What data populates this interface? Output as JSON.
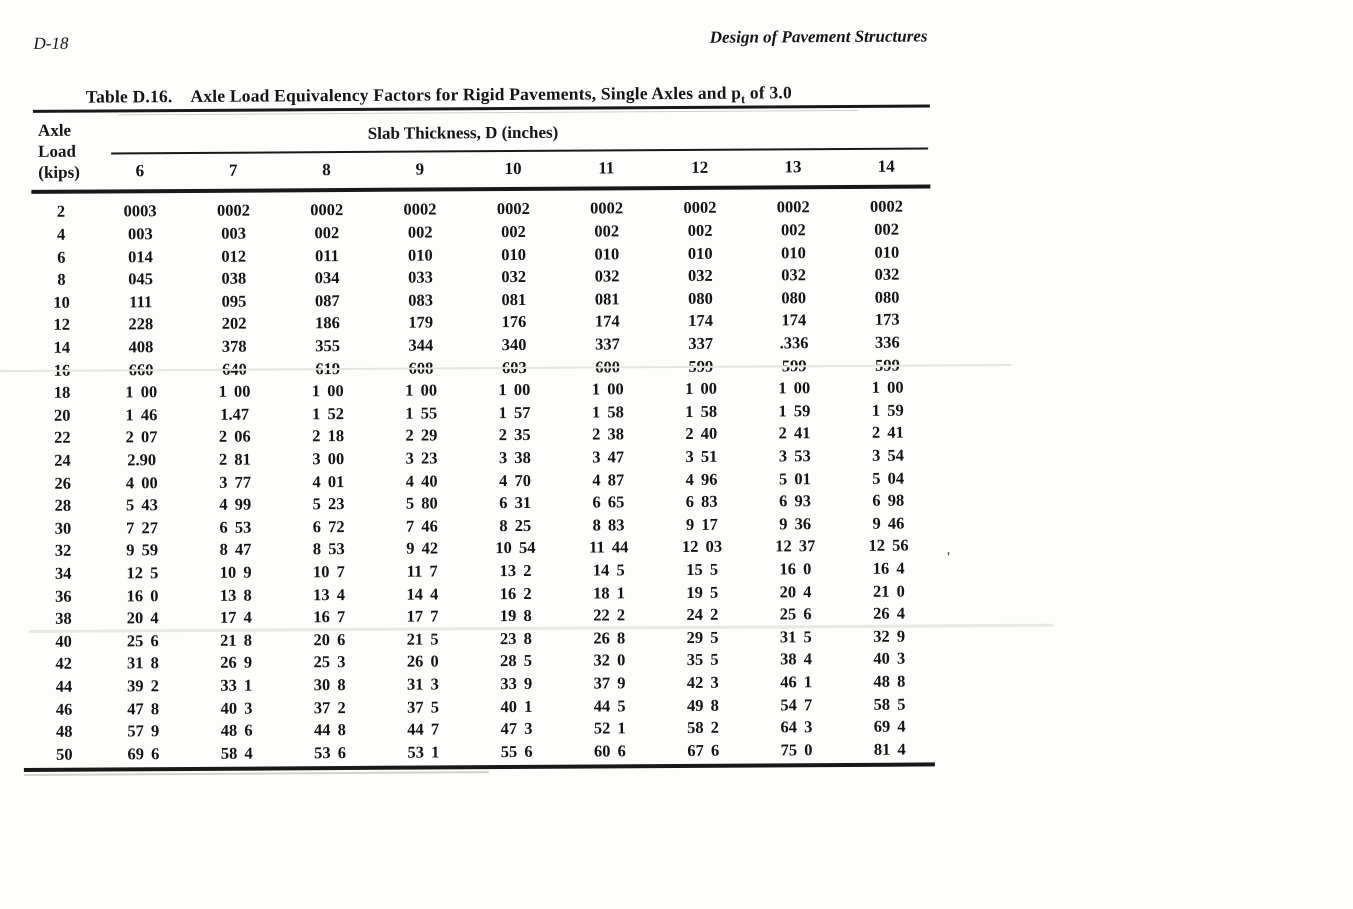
{
  "page": {
    "page_number": "D-18",
    "running_header": "Design of Pavement Structures"
  },
  "table": {
    "caption": {
      "label": "Table D.16.",
      "body_pre": "Axle Load Equivalency Factors for Rigid Pavements, Single Axles and p",
      "body_sub": "t",
      "body_post": " of 3.0"
    },
    "stub_header": [
      "Axle",
      "Load",
      "(kips)"
    ],
    "spanner": "Slab Thickness, D (inches)",
    "columns": [
      "6",
      "7",
      "8",
      "9",
      "10",
      "11",
      "12",
      "13",
      "14"
    ],
    "rows": [
      {
        "kips": "2",
        "values": [
          "0003",
          "0002",
          "0002",
          "0002",
          "0002",
          "0002",
          "0002",
          "0002",
          "0002"
        ]
      },
      {
        "kips": "4",
        "values": [
          "003",
          "003",
          "002",
          "002",
          "002",
          "002",
          "002",
          "002",
          "002"
        ]
      },
      {
        "kips": "6",
        "values": [
          "014",
          "012",
          "011",
          "010",
          "010",
          "010",
          "010",
          "010",
          "010"
        ]
      },
      {
        "kips": "8",
        "values": [
          "045",
          "038",
          "034",
          "033",
          "032",
          "032",
          "032",
          "032",
          "032"
        ]
      },
      {
        "kips": "10",
        "values": [
          "111",
          "095",
          "087",
          "083",
          "081",
          "081",
          "080",
          "080",
          "080"
        ]
      },
      {
        "kips": "12",
        "values": [
          "228",
          "202",
          "186",
          "179",
          "176",
          "174",
          "174",
          "174",
          "173"
        ]
      },
      {
        "kips": "14",
        "values": [
          "408",
          "378",
          "355",
          "344",
          "340",
          "337",
          "337",
          ".336",
          "336"
        ]
      },
      {
        "kips": "16",
        "values": [
          "660",
          "640",
          "619",
          "608",
          "603",
          "600",
          "599",
          "599",
          "599"
        ]
      },
      {
        "kips": "18",
        "values": [
          "1 00",
          "1 00",
          "1 00",
          "1 00",
          "1 00",
          "1 00",
          "1 00",
          "1 00",
          "1 00"
        ]
      },
      {
        "kips": "20",
        "values": [
          "1 46",
          "1.47",
          "1 52",
          "1 55",
          "1 57",
          "1 58",
          "1 58",
          "1 59",
          "1 59"
        ]
      },
      {
        "kips": "22",
        "values": [
          "2 07",
          "2 06",
          "2 18",
          "2 29",
          "2 35",
          "2 38",
          "2 40",
          "2 41",
          "2 41"
        ]
      },
      {
        "kips": "24",
        "values": [
          "2.90",
          "2 81",
          "3 00",
          "3 23",
          "3 38",
          "3 47",
          "3 51",
          "3 53",
          "3 54"
        ]
      },
      {
        "kips": "26",
        "values": [
          "4 00",
          "3 77",
          "4 01",
          "4 40",
          "4 70",
          "4 87",
          "4 96",
          "5 01",
          "5 04"
        ]
      },
      {
        "kips": "28",
        "values": [
          "5 43",
          "4 99",
          "5 23",
          "5 80",
          "6 31",
          "6 65",
          "6 83",
          "6 93",
          "6 98"
        ]
      },
      {
        "kips": "30",
        "values": [
          "7 27",
          "6 53",
          "6 72",
          "7 46",
          "8 25",
          "8 83",
          "9 17",
          "9 36",
          "9 46"
        ]
      },
      {
        "kips": "32",
        "values": [
          "9 59",
          "8 47",
          "8 53",
          "9 42",
          "10 54",
          "11 44",
          "12 03",
          "12 37",
          "12 56"
        ]
      },
      {
        "kips": "34",
        "values": [
          "12 5",
          "10 9",
          "10 7",
          "11 7",
          "13 2",
          "14 5",
          "15 5",
          "16 0",
          "16 4"
        ]
      },
      {
        "kips": "36",
        "values": [
          "16 0",
          "13 8",
          "13 4",
          "14 4",
          "16 2",
          "18 1",
          "19 5",
          "20 4",
          "21 0"
        ]
      },
      {
        "kips": "38",
        "values": [
          "20 4",
          "17 4",
          "16 7",
          "17 7",
          "19 8",
          "22 2",
          "24 2",
          "25 6",
          "26 4"
        ]
      },
      {
        "kips": "40",
        "values": [
          "25 6",
          "21 8",
          "20 6",
          "21 5",
          "23 8",
          "26 8",
          "29 5",
          "31 5",
          "32 9"
        ]
      },
      {
        "kips": "42",
        "values": [
          "31 8",
          "26 9",
          "25 3",
          "26 0",
          "28 5",
          "32 0",
          "35 5",
          "38 4",
          "40 3"
        ]
      },
      {
        "kips": "44",
        "values": [
          "39 2",
          "33 1",
          "30 8",
          "31 3",
          "33 9",
          "37 9",
          "42 3",
          "46 1",
          "48 8"
        ]
      },
      {
        "kips": "46",
        "values": [
          "47 8",
          "40 3",
          "37 2",
          "37 5",
          "40 1",
          "44 5",
          "49 8",
          "54 7",
          "58 5"
        ]
      },
      {
        "kips": "48",
        "values": [
          "57 9",
          "48 6",
          "44 8",
          "44 7",
          "47 3",
          "52 1",
          "58 2",
          "64 3",
          "69 4"
        ]
      },
      {
        "kips": "50",
        "values": [
          "69 6",
          "58 4",
          "53 6",
          "53 1",
          "55 6",
          "60 6",
          "67 6",
          "75 0",
          "81 4"
        ]
      }
    ]
  },
  "scan_artifacts": {
    "stray_mark": "'"
  }
}
